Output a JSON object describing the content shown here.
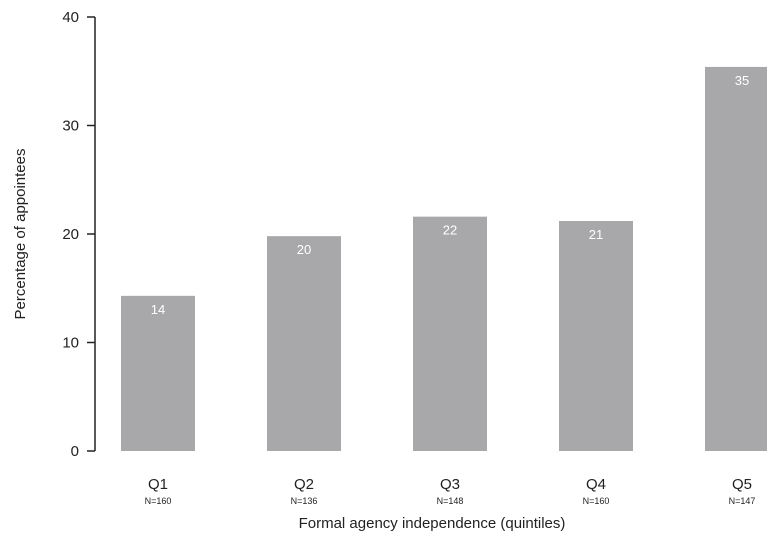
{
  "chart_data": {
    "type": "bar",
    "categories": [
      "Q1",
      "Q2",
      "Q3",
      "Q4",
      "Q5"
    ],
    "sample_sizes": [
      "N=160",
      "N=136",
      "N=148",
      "N=160",
      "N=147"
    ],
    "values": [
      14.3,
      19.8,
      21.6,
      21.2,
      35.4
    ],
    "data_labels": [
      "14",
      "20",
      "22",
      "21",
      "35"
    ],
    "xlabel": "Formal agency independence (quintiles)",
    "ylabel": "Percentage of appointees",
    "ylim": [
      0,
      40
    ],
    "yticks": [
      0,
      10,
      20,
      30,
      40
    ],
    "grid": false,
    "bar_color": "#a8a8ab",
    "label_color": "#ffffff",
    "axis_color": "#222222"
  }
}
